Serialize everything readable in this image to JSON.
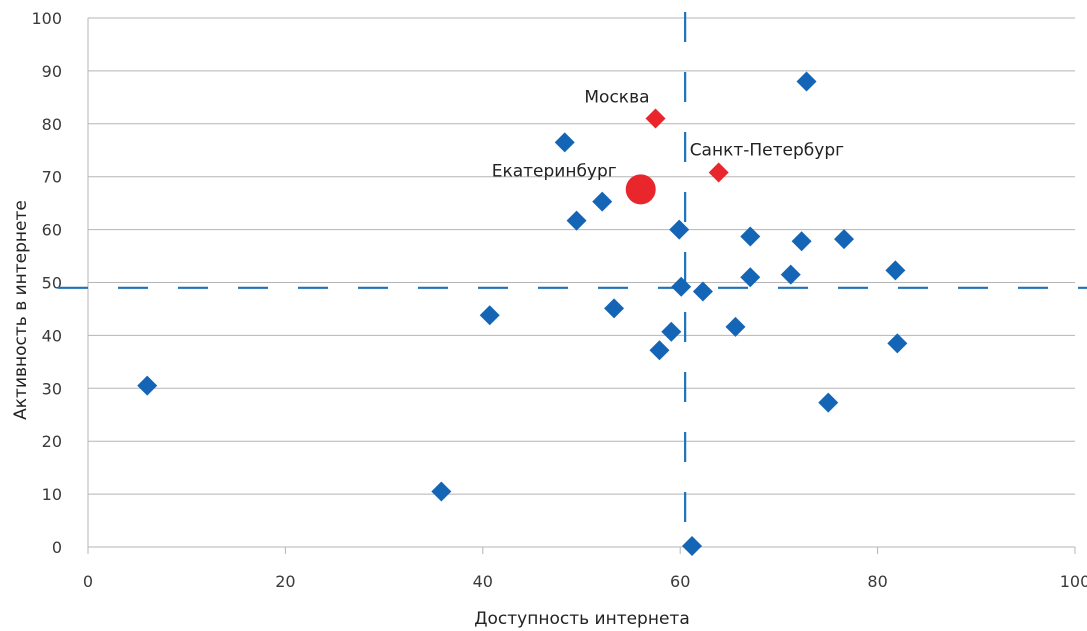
{
  "chart_data": {
    "type": "scatter",
    "title": "",
    "xlabel": "Доступность интернета",
    "ylabel": "Активность в интернете",
    "xlim": [
      0,
      100
    ],
    "ylim": [
      0,
      100
    ],
    "xticks": [
      "0",
      "20",
      "40",
      "60",
      "80",
      "100"
    ],
    "yticks": [
      "0",
      "10",
      "20",
      "30",
      "40",
      "50",
      "60",
      "70",
      "80",
      "90",
      "100"
    ],
    "grid": "horizontal",
    "reference_lines": {
      "x": 60.5,
      "y": 49
    },
    "series": [
      {
        "points": [
          {
            "x": 6,
            "y": 30.5
          },
          {
            "x": 35.8,
            "y": 10.5
          },
          {
            "x": 40.7,
            "y": 43.8
          },
          {
            "x": 48.3,
            "y": 76.5
          },
          {
            "x": 49.5,
            "y": 61.7
          },
          {
            "x": 52.1,
            "y": 65.3
          },
          {
            "x": 53.3,
            "y": 45.1
          },
          {
            "x": 57.9,
            "y": 37.2
          },
          {
            "x": 59.1,
            "y": 40.7
          },
          {
            "x": 59.9,
            "y": 60
          },
          {
            "x": 60.1,
            "y": 49.2
          },
          {
            "x": 61.2,
            "y": 0.2
          },
          {
            "x": 62.3,
            "y": 48.3
          },
          {
            "x": 65.6,
            "y": 41.6
          },
          {
            "x": 67.1,
            "y": 58.7
          },
          {
            "x": 67.1,
            "y": 51
          },
          {
            "x": 71.2,
            "y": 51.5
          },
          {
            "x": 72.3,
            "y": 57.8
          },
          {
            "x": 72.8,
            "y": 88
          },
          {
            "x": 75,
            "y": 27.3
          },
          {
            "x": 76.6,
            "y": 58.2
          },
          {
            "x": 81.8,
            "y": 52.3
          },
          {
            "x": 82,
            "y": 38.5
          }
        ],
        "color": "#1565b7",
        "marker": "diamond"
      }
    ],
    "highlights": [
      {
        "label": "Москва",
        "x": 57.5,
        "y": 81,
        "color": "#e8262b",
        "marker": "diamond"
      },
      {
        "label": "Санкт-Петербург",
        "x": 63.9,
        "y": 70.8,
        "color": "#e8262b",
        "marker": "diamond"
      },
      {
        "label": "Екатеринбург",
        "x": 56,
        "y": 67.6,
        "color": "#e8262b",
        "marker": "circle"
      }
    ],
    "colors": {
      "grid": "#b5b5b5",
      "reference": "#1f72b8"
    }
  }
}
